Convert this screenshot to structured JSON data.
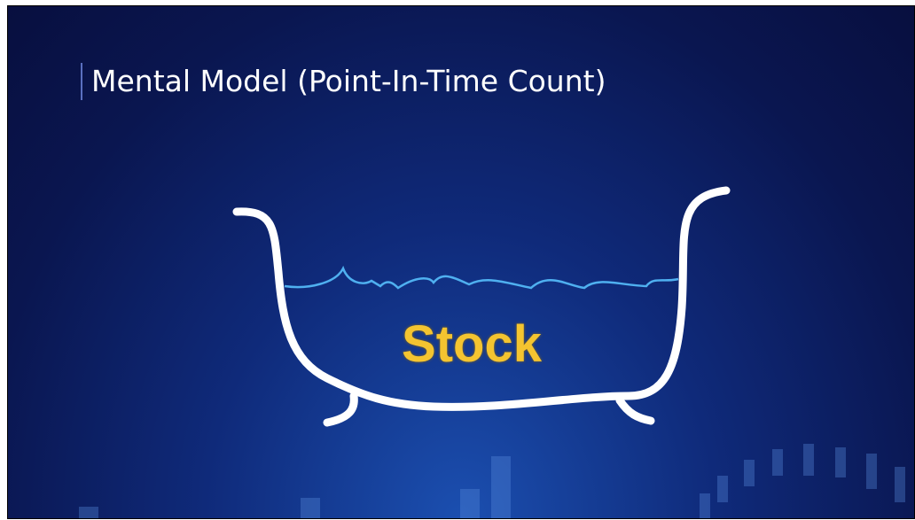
{
  "title": "Mental Model (Point-In-Time Count)",
  "label": "Stock"
}
